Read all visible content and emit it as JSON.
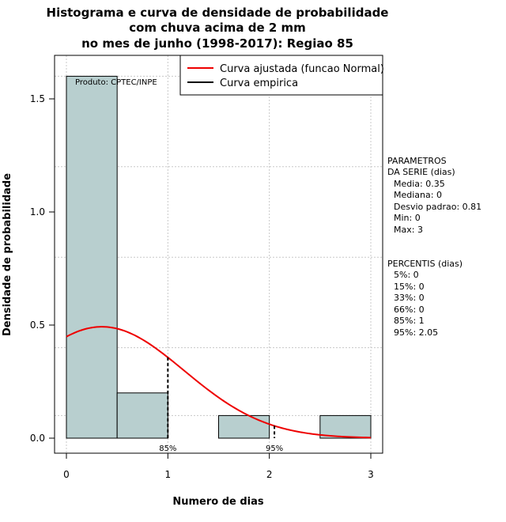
{
  "chart_data": {
    "type": "histogram",
    "title_lines": [
      "Histograma e curva de densidade de probabilidade",
      "com chuva acima de 2 mm",
      "no mes de junho (1998-2017): Regiao 85"
    ],
    "xlabel": "Numero de dias",
    "ylabel": "Densidade de probabilidade",
    "xlim": [
      0,
      3
    ],
    "ylim": [
      0,
      1.6
    ],
    "x_ticks": [
      "0",
      "1",
      "2",
      "3"
    ],
    "y_ticks": [
      "0.0",
      "0.5",
      "1.0",
      "1.5"
    ],
    "bars": [
      {
        "x0": 0.0,
        "x1": 0.5,
        "density": 1.6
      },
      {
        "x0": 0.5,
        "x1": 1.0,
        "density": 0.2
      },
      {
        "x0": 1.0,
        "x1": 1.5,
        "density": 0.0
      },
      {
        "x0": 1.5,
        "x1": 2.0,
        "density": 0.1
      },
      {
        "x0": 2.0,
        "x1": 2.5,
        "density": 0.0
      },
      {
        "x0": 2.5,
        "x1": 3.0,
        "density": 0.1
      }
    ],
    "normal_fit": {
      "mean": 0.35,
      "sd": 0.81
    },
    "percentile_markers": [
      {
        "label": "85%",
        "x": 1.0
      },
      {
        "label": "95%",
        "x": 2.05
      }
    ],
    "legend": [
      {
        "label": "Curva ajustada (funcao Normal)",
        "color": "#ee0000"
      },
      {
        "label": "Curva empirica",
        "color": "#000000"
      }
    ],
    "product_label": "Produto: CPTEC/INPE",
    "bar_color": "#b8cfcf",
    "curve_color": "#ee0000"
  },
  "side_panel": {
    "params_title_1": "PARAMETROS",
    "params_title_2": "DA SERIE (dias)",
    "media": "Media: 0.35",
    "mediana": "Mediana: 0",
    "desvio": "Desvio padrao: 0.81",
    "min": "Min: 0",
    "max": "Max: 3",
    "percentis_title": "PERCENTIS (dias)",
    "p5": "5%: 0",
    "p15": "15%: 0",
    "p33": "33%: 0",
    "p66": "66%: 0",
    "p85": "85%: 1",
    "p95": "95%: 2.05"
  }
}
